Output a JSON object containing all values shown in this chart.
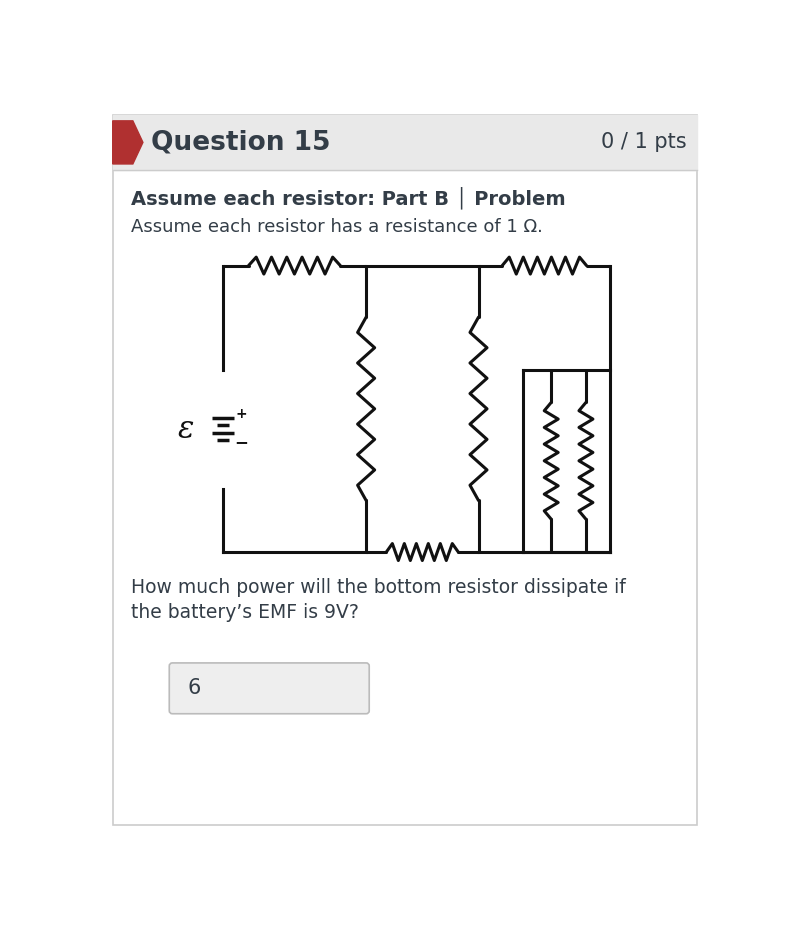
{
  "title": "Question 15",
  "pts": "0 / 1 pts",
  "subtitle": "Assume each resistor: Part B │ Problem",
  "description": "Assume each resistor has a resistance of 1 Ω.",
  "question_line1": "How much power will the bottom resistor dissipate if",
  "question_line2": "the battery’s EMF is 9V?",
  "answer": "6",
  "bg_header": "#e9e9e9",
  "bg_main": "#ffffff",
  "text_color": "#333d47",
  "border_color": "#cccccc",
  "arrow_color": "#b03030",
  "lc": "#111111",
  "lw": 2.2
}
